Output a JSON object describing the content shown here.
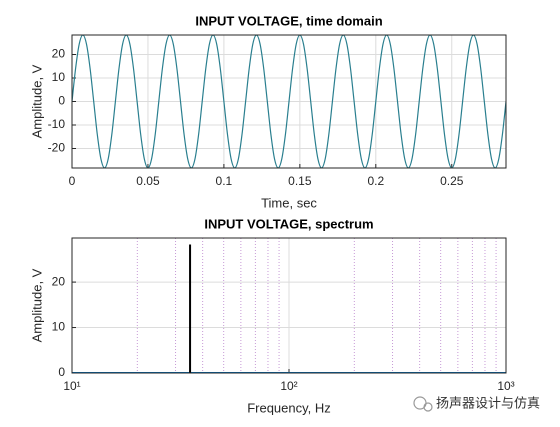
{
  "chart_data": [
    {
      "type": "line",
      "title": "INPUT VOLTAGE, time domain",
      "xlabel": "Time, sec",
      "ylabel": "Amplitude, V",
      "xlim": [
        0,
        0.28571
      ],
      "ylim": [
        -28.3,
        28.3
      ],
      "xticks": [
        0,
        0.05,
        0.1,
        0.15,
        0.2,
        0.25
      ],
      "yticks": [
        -20,
        -10,
        0,
        10,
        20
      ],
      "grid": true,
      "series": [
        {
          "color": "#2a7f8f",
          "x": [
            0,
            0.00238,
            0.00476,
            0.00714,
            0.00952,
            0.0119,
            0.01429,
            0.01667,
            0.01905,
            0.02143,
            0.02381,
            0.02619,
            0.02857,
            0.03095,
            0.03333,
            0.03571,
            0.03809,
            0.04047,
            0.04286,
            0.04524,
            0.04762,
            0.05,
            0.05238,
            0.05476,
            0.05714,
            0.05952,
            0.0619,
            0.06428,
            0.06666,
            0.06904,
            0.07143,
            0.07381,
            0.07619,
            0.07857,
            0.08095,
            0.08333,
            0.08571,
            0.08809,
            0.09047,
            0.09285,
            0.09523,
            0.09761,
            0.1,
            0.10238,
            0.10476,
            0.10714,
            0.10952,
            0.1119,
            0.11429,
            0.11667,
            0.11905,
            0.12143,
            0.12381,
            0.12619,
            0.12858,
            0.13096,
            0.13334,
            0.13572,
            0.1381,
            0.14048,
            0.14286,
            0.14524,
            0.14762,
            0.15,
            0.15238,
            0.15476,
            0.15715,
            0.15953,
            0.16191,
            0.16429,
            0.16667,
            0.16905,
            0.17143,
            0.17381,
            0.17619,
            0.17857,
            0.18095,
            0.18333,
            0.18572,
            0.1881,
            0.19048,
            0.19286,
            0.19524,
            0.19762,
            0.2,
            0.20238,
            0.20476,
            0.20714,
            0.20952,
            0.2119,
            0.21429,
            0.21667,
            0.21905,
            0.22143,
            0.22381,
            0.22619,
            0.22857,
            0.23095,
            0.23333,
            0.23571,
            0.23809,
            0.24047,
            0.24286,
            0.24524,
            0.24762,
            0.25,
            0.25238,
            0.25476,
            0.25714,
            0.25952,
            0.2619,
            0.26428,
            0.26666,
            0.26904,
            0.27143,
            0.27381,
            0.27619,
            0.27857,
            0.28095,
            0.28333,
            0.28571
          ],
          "values": [
            0,
            14.14,
            24.49,
            28.28,
            24.49,
            14.14,
            0,
            -14.14,
            -24.49,
            -28.28,
            -24.49,
            -14.14,
            0,
            14.14,
            24.49,
            28.28,
            24.49,
            14.14,
            0,
            -14.14,
            -24.49,
            -28.28,
            -24.49,
            -14.14,
            0,
            14.14,
            24.49,
            28.28,
            24.49,
            14.14,
            0,
            -14.14,
            -24.49,
            -28.28,
            -24.49,
            -14.14,
            0,
            14.14,
            24.49,
            28.28,
            24.49,
            14.14,
            0,
            -14.14,
            -24.49,
            -28.28,
            -24.49,
            -14.14,
            0,
            14.14,
            24.49,
            28.28,
            24.49,
            14.14,
            0,
            -14.14,
            -24.49,
            -28.28,
            -24.49,
            -14.14,
            0,
            14.14,
            24.49,
            28.28,
            24.49,
            14.14,
            0,
            -14.14,
            -24.49,
            -28.28,
            -24.49,
            -14.14,
            0,
            14.14,
            24.49,
            28.28,
            24.49,
            14.14,
            0,
            -14.14,
            -24.49,
            -28.28,
            -24.49,
            -14.14,
            0,
            14.14,
            24.49,
            28.28,
            24.49,
            14.14,
            0,
            -14.14,
            -24.49,
            -28.28,
            -24.49,
            -14.14,
            0,
            14.14,
            24.49,
            28.28,
            24.49,
            14.14,
            0,
            -14.14,
            -24.49,
            -28.28,
            -24.49,
            -14.14,
            0,
            14.14,
            24.49,
            28.28,
            24.49,
            14.14,
            0,
            -14.14,
            -24.49,
            -28.28,
            -24.49,
            -14.14,
            0
          ]
        }
      ]
    },
    {
      "type": "line",
      "title": "INPUT VOLTAGE, spectrum",
      "xlabel": "Frequency, Hz",
      "ylabel": "Amplitude, V",
      "xscale": "log",
      "xlim": [
        10,
        1000
      ],
      "ylim": [
        0,
        29.7
      ],
      "xticks": [
        {
          "value": 10,
          "label": "10¹"
        },
        {
          "value": 100,
          "label": "10²"
        },
        {
          "value": 1000,
          "label": "10³"
        }
      ],
      "yticks": [
        0,
        10,
        20
      ],
      "grid": true,
      "minor_xgrid": [
        20,
        30,
        40,
        50,
        60,
        70,
        80,
        90,
        200,
        300,
        400,
        500,
        600,
        700,
        800,
        900
      ],
      "series": [
        {
          "color": "#0072bd",
          "x": [
            10,
            1000
          ],
          "values": [
            0,
            0
          ]
        },
        {
          "color": "#000000",
          "x": [
            35,
            35
          ],
          "values": [
            0,
            28.28
          ]
        }
      ]
    }
  ],
  "watermark": "扬声器设计与仿真"
}
